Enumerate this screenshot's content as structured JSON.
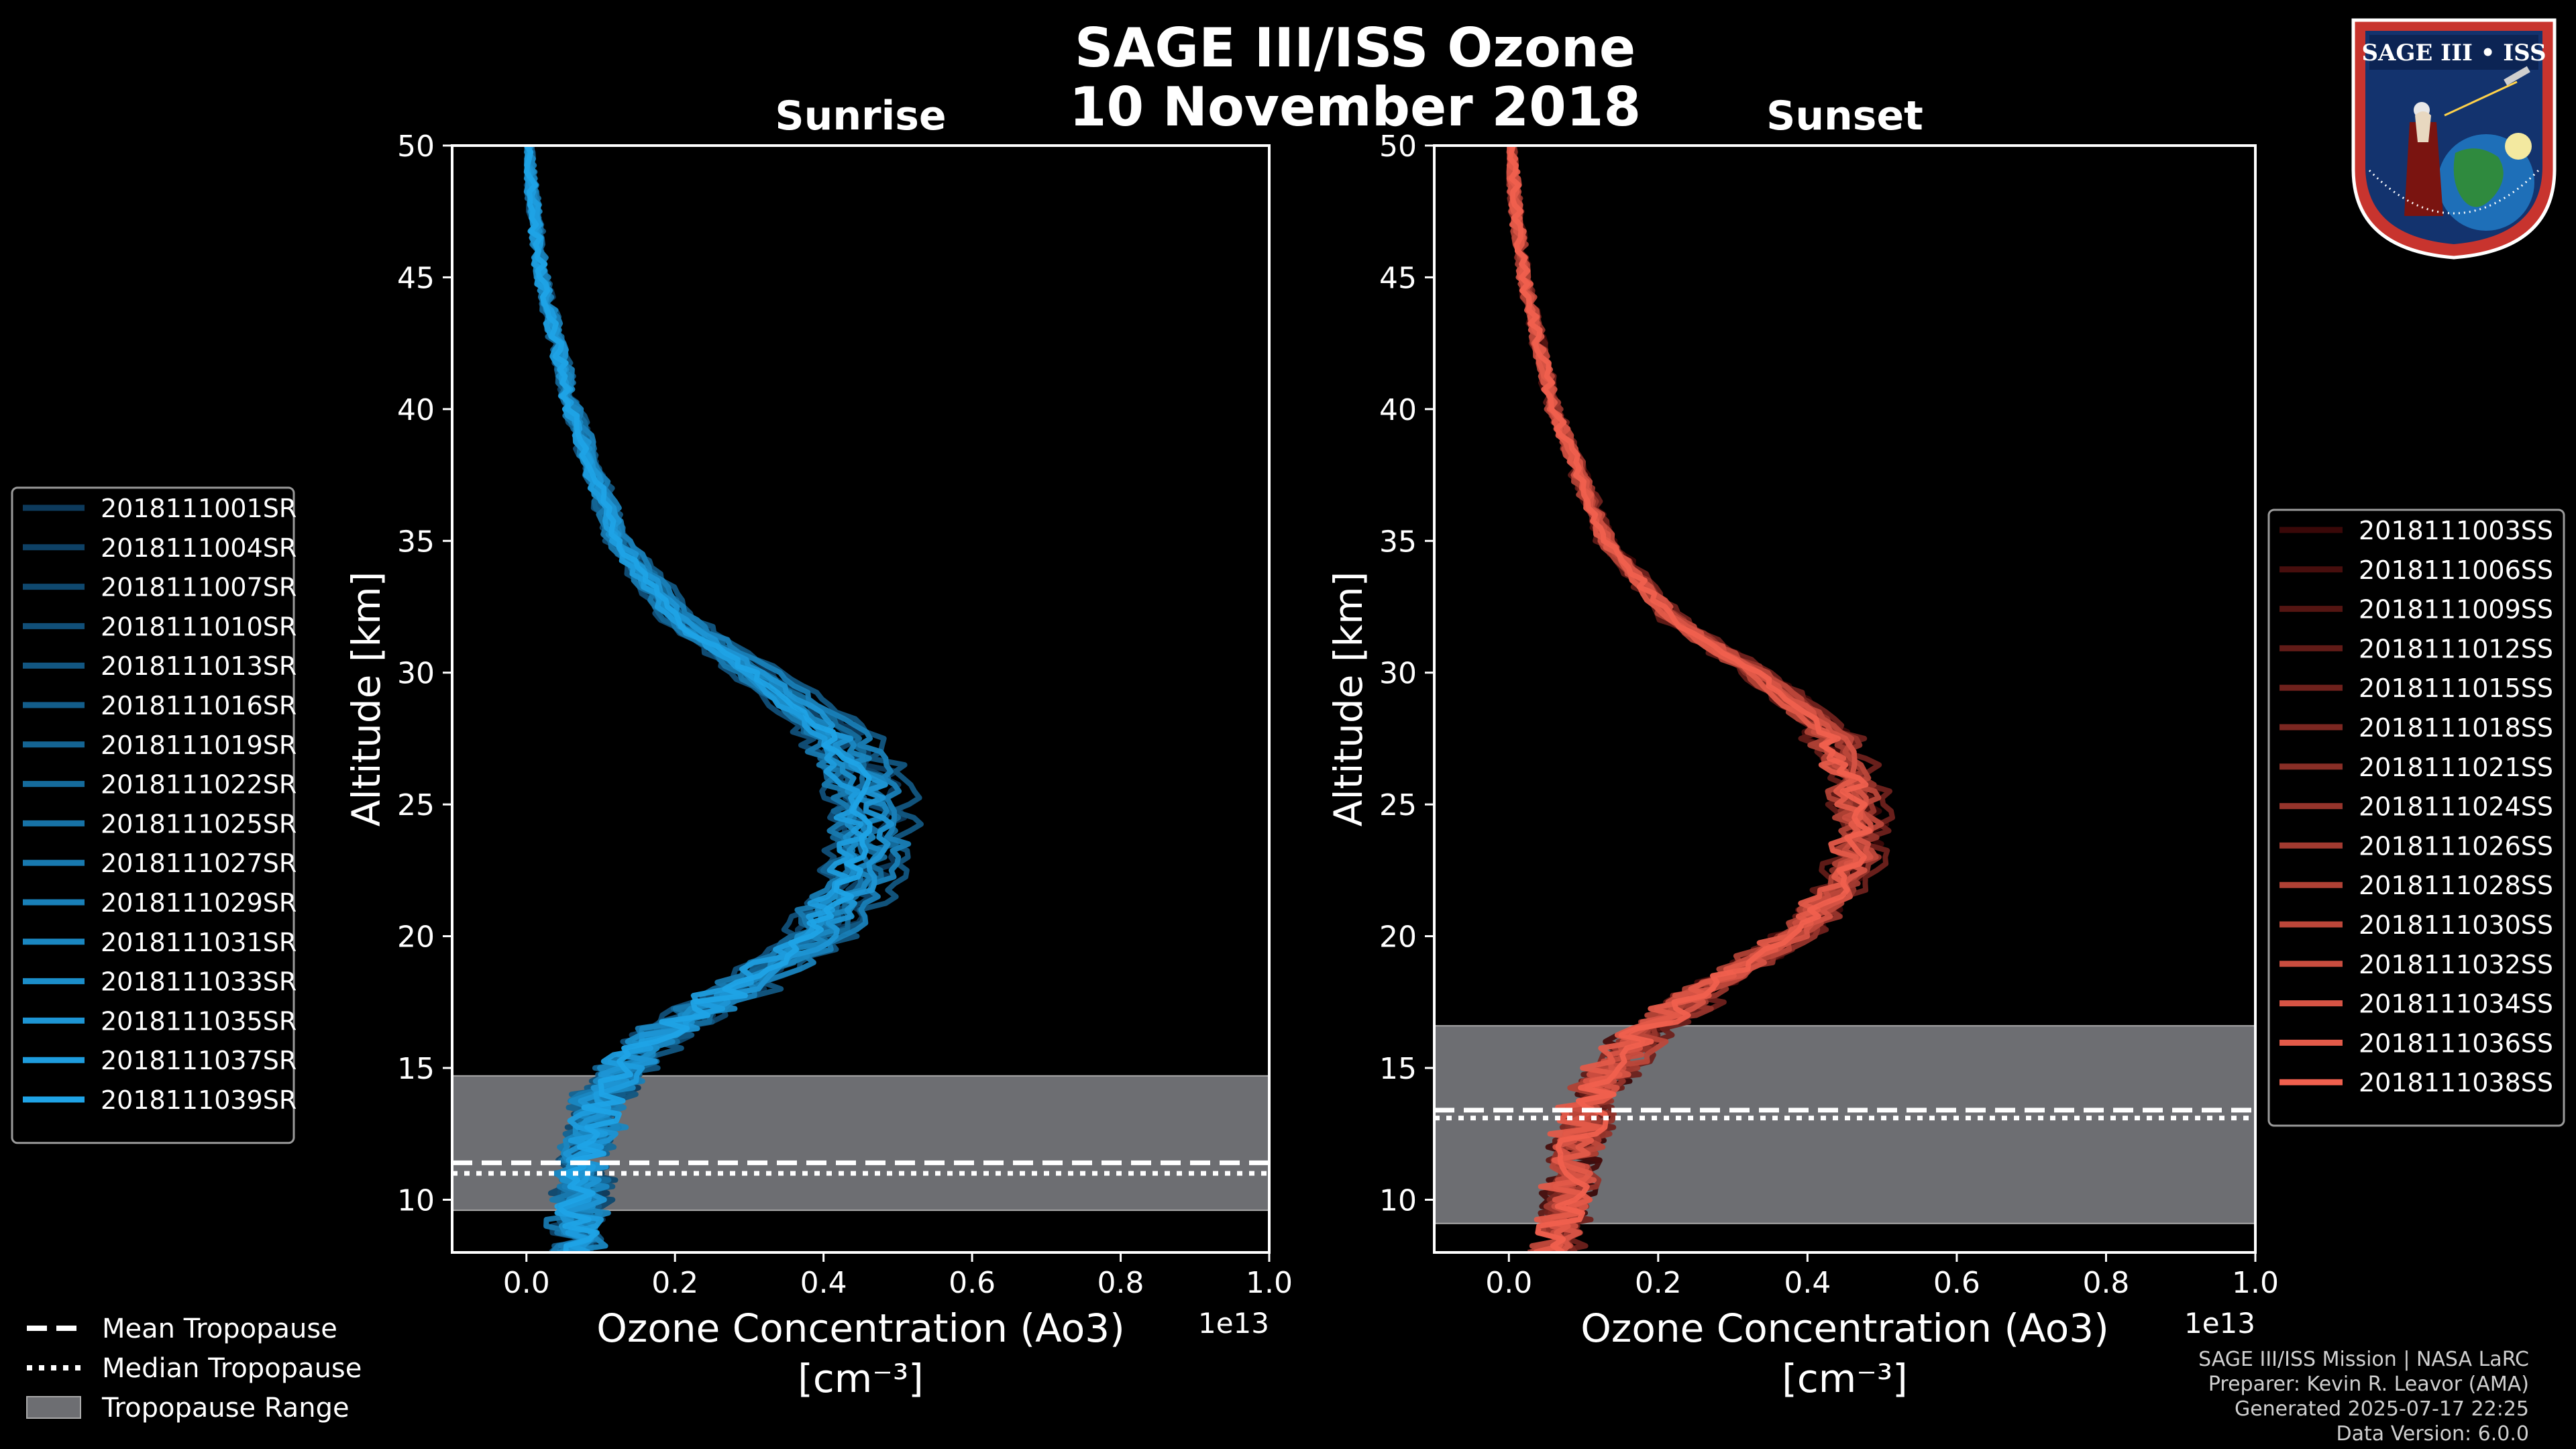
{
  "title": {
    "line1": "SAGE III/ISS Ozone",
    "line2": "10 November 2018"
  },
  "badge": {
    "text": "SAGE III • ISS"
  },
  "credits": {
    "line1": "SAGE III/ISS Mission | NASA LaRC",
    "line2": "Preparer: Kevin R. Leavor (AMA)",
    "line3": "Generated 2025-07-17 22:25",
    "line4": "Data Version: 6.0.0"
  },
  "tropo_legend": [
    {
      "label": "Mean Tropopause",
      "style": "dashed"
    },
    {
      "label": "Median Tropopause",
      "style": "dotted"
    },
    {
      "label": "Tropopause Range",
      "style": "box"
    }
  ],
  "chart_data": [
    {
      "type": "line",
      "title": "Sunrise",
      "xlabel": "Ozone Concentration (Ao3)",
      "xunit": "[cm⁻³]",
      "ylabel": "Altitude [km]",
      "offset_label": "1e13",
      "xlim": [
        -0.1,
        1.0
      ],
      "ylim": [
        8,
        50
      ],
      "xticks": [
        0.0,
        0.2,
        0.4,
        0.6,
        0.8,
        1.0
      ],
      "xtick_labels": [
        "0.0",
        "0.2",
        "0.4",
        "0.6",
        "0.8",
        "1.0"
      ],
      "yticks": [
        10,
        15,
        20,
        25,
        30,
        35,
        40,
        45,
        50
      ],
      "tropopause": {
        "min": 9.6,
        "max": 14.7,
        "mean": 11.4,
        "median": 11.0
      },
      "color_dark": "#0d3a5c",
      "color_light": "#1fa3e6",
      "legend_loc": "left",
      "mean_profile": [
        [
          50,
          0.0
        ],
        [
          45,
          0.02
        ],
        [
          40,
          0.06
        ],
        [
          35,
          0.12
        ],
        [
          32,
          0.2
        ],
        [
          30,
          0.3
        ],
        [
          28,
          0.39
        ],
        [
          26,
          0.44
        ],
        [
          24,
          0.45
        ],
        [
          22,
          0.43
        ],
        [
          20,
          0.38
        ],
        [
          18,
          0.28
        ],
        [
          16,
          0.16
        ],
        [
          14,
          0.1
        ],
        [
          12,
          0.08
        ],
        [
          10,
          0.07
        ],
        [
          8,
          0.06
        ]
      ],
      "series": [
        {
          "name": "2018111001SR",
          "scale": 1.1,
          "jitter": 0.6
        },
        {
          "name": "2018111004SR",
          "scale": 0.98,
          "jitter": 0.5
        },
        {
          "name": "2018111007SR",
          "scale": 1.05,
          "jitter": 0.7
        },
        {
          "name": "2018111010SR",
          "scale": 0.93,
          "jitter": 0.4
        },
        {
          "name": "2018111013SR",
          "scale": 1.15,
          "jitter": 0.6
        },
        {
          "name": "2018111016SR",
          "scale": 1.0,
          "jitter": 0.5
        },
        {
          "name": "2018111019SR",
          "scale": 0.96,
          "jitter": 0.6
        },
        {
          "name": "2018111022SR",
          "scale": 1.08,
          "jitter": 0.5
        },
        {
          "name": "2018111025SR",
          "scale": 1.02,
          "jitter": 0.4
        },
        {
          "name": "2018111027SR",
          "scale": 0.95,
          "jitter": 0.6
        },
        {
          "name": "2018111029SR",
          "scale": 1.12,
          "jitter": 0.5
        },
        {
          "name": "2018111031SR",
          "scale": 1.04,
          "jitter": 0.7
        },
        {
          "name": "2018111033SR",
          "scale": 0.99,
          "jitter": 0.4
        },
        {
          "name": "2018111035SR",
          "scale": 1.06,
          "jitter": 0.5
        },
        {
          "name": "2018111037SR",
          "scale": 0.97,
          "jitter": 0.6
        },
        {
          "name": "2018111039SR",
          "scale": 1.01,
          "jitter": 0.5
        }
      ]
    },
    {
      "type": "line",
      "title": "Sunset",
      "xlabel": "Ozone Concentration (Ao3)",
      "xunit": "[cm⁻³]",
      "ylabel": "Altitude [km]",
      "offset_label": "1e13",
      "xlim": [
        -0.1,
        1.0
      ],
      "ylim": [
        8,
        50
      ],
      "xticks": [
        0.0,
        0.2,
        0.4,
        0.6,
        0.8,
        1.0
      ],
      "xtick_labels": [
        "0.0",
        "0.2",
        "0.4",
        "0.6",
        "0.8",
        "1.0"
      ],
      "yticks": [
        10,
        15,
        20,
        25,
        30,
        35,
        40,
        45,
        50
      ],
      "tropopause": {
        "min": 9.1,
        "max": 16.6,
        "mean": 13.4,
        "median": 13.1
      },
      "color_dark": "#3a0808",
      "color_light": "#f0604e",
      "legend_loc": "right",
      "mean_profile": [
        [
          50,
          0.0
        ],
        [
          45,
          0.02
        ],
        [
          40,
          0.06
        ],
        [
          35,
          0.13
        ],
        [
          32,
          0.22
        ],
        [
          30,
          0.33
        ],
        [
          28,
          0.42
        ],
        [
          26,
          0.46
        ],
        [
          24,
          0.47
        ],
        [
          22,
          0.45
        ],
        [
          20,
          0.38
        ],
        [
          18,
          0.26
        ],
        [
          16,
          0.17
        ],
        [
          14,
          0.11
        ],
        [
          12,
          0.09
        ],
        [
          10,
          0.08
        ],
        [
          8,
          0.06
        ]
      ],
      "series": [
        {
          "name": "2018111003SS",
          "scale": 1.05,
          "jitter": 0.5
        },
        {
          "name": "2018111006SS",
          "scale": 0.97,
          "jitter": 0.6
        },
        {
          "name": "2018111009SS",
          "scale": 1.02,
          "jitter": 0.4
        },
        {
          "name": "2018111012SS",
          "scale": 0.95,
          "jitter": 0.5
        },
        {
          "name": "2018111015SS",
          "scale": 1.06,
          "jitter": 0.6
        },
        {
          "name": "2018111018SS",
          "scale": 1.0,
          "jitter": 0.5
        },
        {
          "name": "2018111021SS",
          "scale": 0.98,
          "jitter": 0.4
        },
        {
          "name": "2018111024SS",
          "scale": 1.04,
          "jitter": 0.6
        },
        {
          "name": "2018111026SS",
          "scale": 1.01,
          "jitter": 0.5
        },
        {
          "name": "2018111028SS",
          "scale": 0.96,
          "jitter": 0.5
        },
        {
          "name": "2018111030SS",
          "scale": 1.03,
          "jitter": 0.6
        },
        {
          "name": "2018111032SS",
          "scale": 0.99,
          "jitter": 0.4
        },
        {
          "name": "2018111034SS",
          "scale": 1.02,
          "jitter": 0.5
        },
        {
          "name": "2018111036SS",
          "scale": 0.97,
          "jitter": 0.6
        },
        {
          "name": "2018111038SS",
          "scale": 1.0,
          "jitter": 0.5
        }
      ]
    }
  ]
}
